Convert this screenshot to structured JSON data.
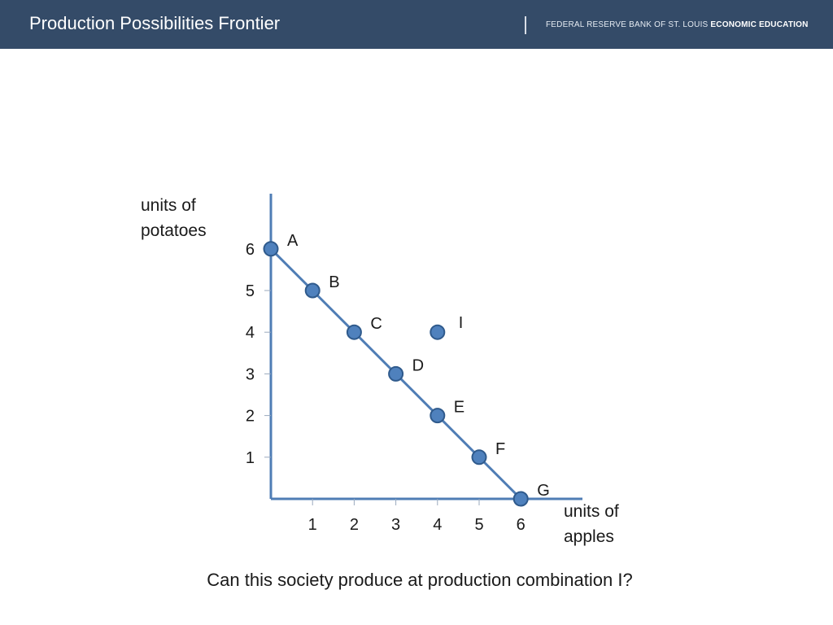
{
  "header": {
    "title": "Production Possibilities Frontier",
    "org_regular": "FEDERAL RESERVE BANK OF ST. LOUIS ",
    "org_bold": "ECONOMIC EDUCATION",
    "background": "#344b68"
  },
  "chart_data": {
    "type": "line",
    "ylabel_lines": [
      "units of",
      "potatoes"
    ],
    "xlabel_lines": [
      "units of",
      "apples"
    ],
    "xlim": [
      0,
      7.5
    ],
    "ylim": [
      0,
      7.2
    ],
    "x_ticks": [
      1,
      2,
      3,
      4,
      5,
      6
    ],
    "y_ticks": [
      1,
      2,
      3,
      4,
      5,
      6
    ],
    "grid": false,
    "frontier": [
      {
        "label": "A",
        "x": 0,
        "y": 6
      },
      {
        "label": "B",
        "x": 1,
        "y": 5
      },
      {
        "label": "C",
        "x": 2,
        "y": 4
      },
      {
        "label": "D",
        "x": 3,
        "y": 3
      },
      {
        "label": "E",
        "x": 4,
        "y": 2
      },
      {
        "label": "F",
        "x": 5,
        "y": 1
      },
      {
        "label": "G",
        "x": 6,
        "y": 0
      }
    ],
    "extra_points": [
      {
        "label": "I",
        "x": 4,
        "y": 4
      }
    ],
    "colors": {
      "axis": "#4f7db5",
      "line": "#4f7db5",
      "point_fill": "#4f81bd",
      "point_stroke": "#2f5a8c"
    }
  },
  "caption": "Can this society produce at production combination I?"
}
